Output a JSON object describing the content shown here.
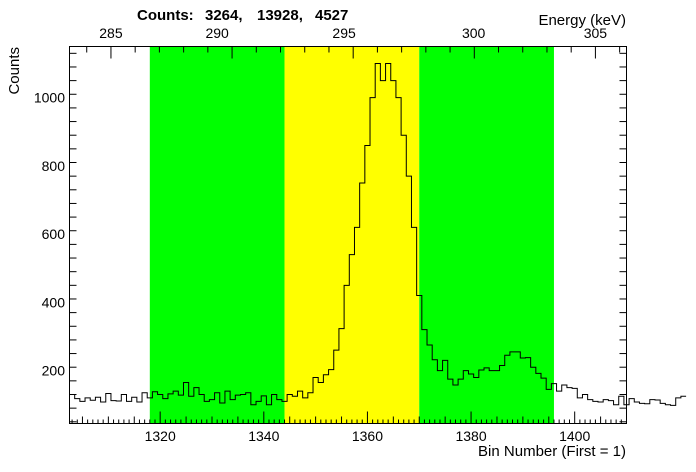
{
  "header": {
    "counts_label": "Counts:",
    "counts_values": [
      "3264,",
      "13928,",
      "4527"
    ]
  },
  "chart_data": {
    "type": "histogram",
    "xlabel": "Bin Number (First = 1)",
    "ylabel": "Counts",
    "top_axis_label": "Energy (keV)",
    "xlim": [
      1302.5,
      1410
    ],
    "ylim": [
      45,
      1150
    ],
    "x_ticks": [
      1320,
      1340,
      1360,
      1380,
      1400
    ],
    "y_ticks": [
      200,
      400,
      600,
      800,
      1000
    ],
    "top_ticks": [
      {
        "label": "285",
        "bin": 1310.5
      },
      {
        "label": "290",
        "bin": 1331.0
      },
      {
        "label": "295",
        "bin": 1355.5
      },
      {
        "label": "300",
        "bin": 1380.5
      },
      {
        "label": "305",
        "bin": 1404.0
      }
    ],
    "regions": [
      {
        "from": 1318,
        "to": 1344,
        "color": "#00ff00",
        "count": 3264
      },
      {
        "from": 1344,
        "to": 1370,
        "color": "#ffff00",
        "count": 13928
      },
      {
        "from": 1370,
        "to": 1396,
        "color": "#00ff00",
        "count": 4527
      }
    ],
    "bin_start": 1302.5,
    "bin_width": 1,
    "counts": [
      130,
      118,
      110,
      120,
      113,
      122,
      108,
      133,
      112,
      111,
      130,
      110,
      122,
      108,
      135,
      120,
      138,
      130,
      118,
      132,
      140,
      128,
      165,
      125,
      150,
      130,
      110,
      115,
      135,
      105,
      140,
      115,
      128,
      130,
      135,
      100,
      110,
      126,
      100,
      130,
      115,
      110,
      130,
      125,
      140,
      120,
      135,
      180,
      165,
      188,
      203,
      260,
      323,
      450,
      540,
      620,
      750,
      860,
      1000,
      1100,
      1050,
      1100,
      1050,
      1000,
      890,
      770,
      620,
      420,
      320,
      275,
      232,
      200,
      230,
      175,
      158,
      175,
      200,
      190,
      180,
      202,
      208,
      200,
      200,
      215,
      245,
      255,
      255,
      237,
      238,
      210,
      192,
      178,
      145,
      162,
      140,
      158,
      150,
      148,
      120,
      130,
      115,
      110,
      108,
      115,
      112,
      100,
      125,
      100,
      118,
      108,
      104,
      103,
      115,
      114,
      104,
      100,
      98,
      120,
      125
    ]
  }
}
